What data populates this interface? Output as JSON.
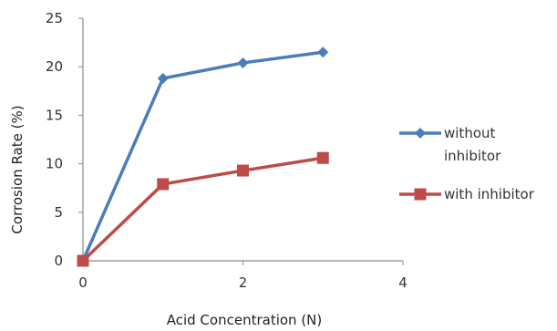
{
  "chart_data": {
    "type": "line",
    "title": "",
    "xlabel": "Acid Concentration (N)",
    "ylabel": "Corrosion Rate (%)",
    "xlim": [
      0,
      4
    ],
    "ylim": [
      0,
      25
    ],
    "xticks": [
      0,
      2,
      4
    ],
    "yticks": [
      0,
      5,
      10,
      15,
      20,
      25
    ],
    "grid": false,
    "legend": "right",
    "series": [
      {
        "name": "without inhibitor",
        "name_lines": [
          "without",
          "inhibitor"
        ],
        "color": "#4a7ebb",
        "marker": "diamond",
        "x": [
          0,
          1,
          2,
          3
        ],
        "y": [
          0,
          18.8,
          20.4,
          21.5
        ]
      },
      {
        "name": "with inhibitor",
        "name_lines": [
          "with inhibitor"
        ],
        "color": "#be4b48",
        "marker": "square",
        "x": [
          0,
          1,
          2,
          3
        ],
        "y": [
          0,
          7.9,
          9.3,
          10.6
        ]
      }
    ]
  }
}
